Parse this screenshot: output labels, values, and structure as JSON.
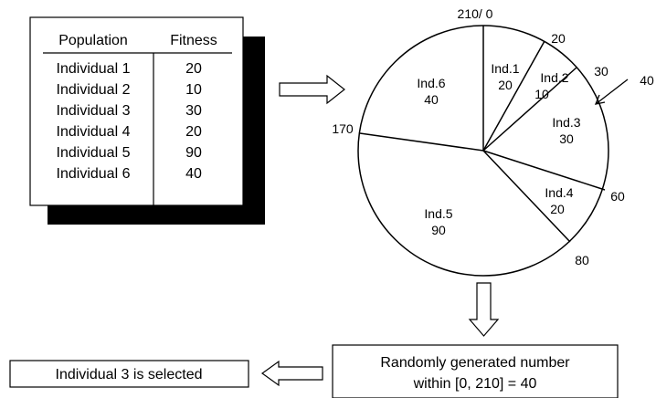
{
  "table": {
    "headers": [
      "Population",
      "Fitness"
    ],
    "rows": [
      {
        "individual": "Individual 1",
        "fitness": "20"
      },
      {
        "individual": "Individual 2",
        "fitness": "10"
      },
      {
        "individual": "Individual 3",
        "fitness": "30"
      },
      {
        "individual": "Individual 4",
        "fitness": "20"
      },
      {
        "individual": "Individual 5",
        "fitness": "90"
      },
      {
        "individual": "Individual 6",
        "fitness": "40"
      }
    ]
  },
  "wheel": {
    "slices": [
      {
        "name": "Ind.1",
        "value": "20"
      },
      {
        "name": "Ind.2",
        "value": "10"
      },
      {
        "name": "Ind.3",
        "value": "30"
      },
      {
        "name": "Ind.4",
        "value": "20"
      },
      {
        "name": "Ind.5",
        "value": "90"
      },
      {
        "name": "Ind.6",
        "value": "40"
      }
    ],
    "boundary_labels": [
      "210/ 0",
      "20",
      "30",
      "60",
      "80",
      "170"
    ],
    "pointer_label": "40"
  },
  "random_box": {
    "line1": "Randomly generated number",
    "line2": "within [0, 210] = 40"
  },
  "result_box": {
    "text": "Individual 3 is selected"
  }
}
